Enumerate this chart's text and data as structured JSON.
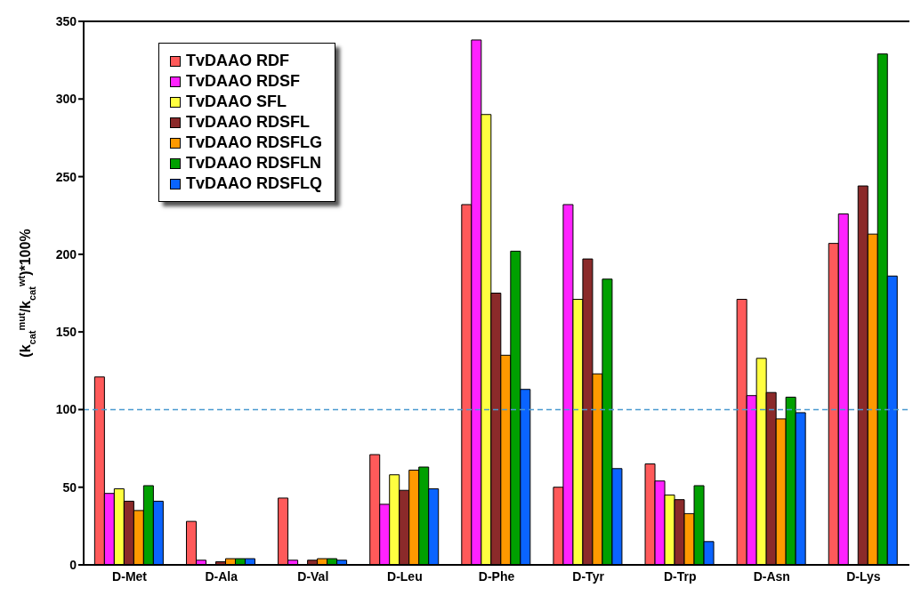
{
  "chart_data": {
    "type": "bar",
    "ylabel": "(k$_{cat}$$^{mut}$/k$_{cat}$$^{wt}$)*100%",
    "categories": [
      "D-Met",
      "D-Ala",
      "D-Val",
      "D-Leu",
      "D-Phe",
      "D-Tyr",
      "D-Trp",
      "D-Asn",
      "D-Lys"
    ],
    "series": [
      {
        "name": "TvDAAO RDF",
        "color": "#ff5a5a",
        "values": [
          121,
          28,
          43,
          71,
          232,
          50,
          65,
          171,
          207
        ]
      },
      {
        "name": "TvDAAO RDSF",
        "color": "#ff22ff",
        "values": [
          46,
          3,
          3,
          39,
          338,
          232,
          54,
          109,
          226
        ]
      },
      {
        "name": "TvDAAO SFL",
        "color": "#ffff40",
        "values": [
          49,
          0,
          0,
          58,
          290,
          171,
          45,
          133,
          0
        ]
      },
      {
        "name": "TvDAAO RDSFL",
        "color": "#8b2a2a",
        "values": [
          41,
          2,
          3,
          48,
          175,
          197,
          42,
          111,
          244
        ]
      },
      {
        "name": "TvDAAO RDSFLG",
        "color": "#ff9900",
        "values": [
          35,
          4,
          4,
          61,
          135,
          123,
          33,
          94,
          213
        ]
      },
      {
        "name": "TvDAAO RDSFLN",
        "color": "#00a000",
        "values": [
          51,
          4,
          4,
          63,
          202,
          184,
          51,
          108,
          329
        ]
      },
      {
        "name": "TvDAAO RDSFLQ",
        "color": "#0a64ff",
        "values": [
          41,
          4,
          3,
          49,
          113,
          62,
          15,
          98,
          186
        ]
      }
    ],
    "ylim": [
      0,
      350
    ],
    "yticks": [
      0,
      50,
      100,
      150,
      200,
      250,
      300,
      350
    ],
    "ref_lines": [
      {
        "axis": "y",
        "value": 100,
        "color": "#4a9ad0",
        "line_style": "dashed"
      }
    ],
    "legend": "top left",
    "grid": false
  }
}
